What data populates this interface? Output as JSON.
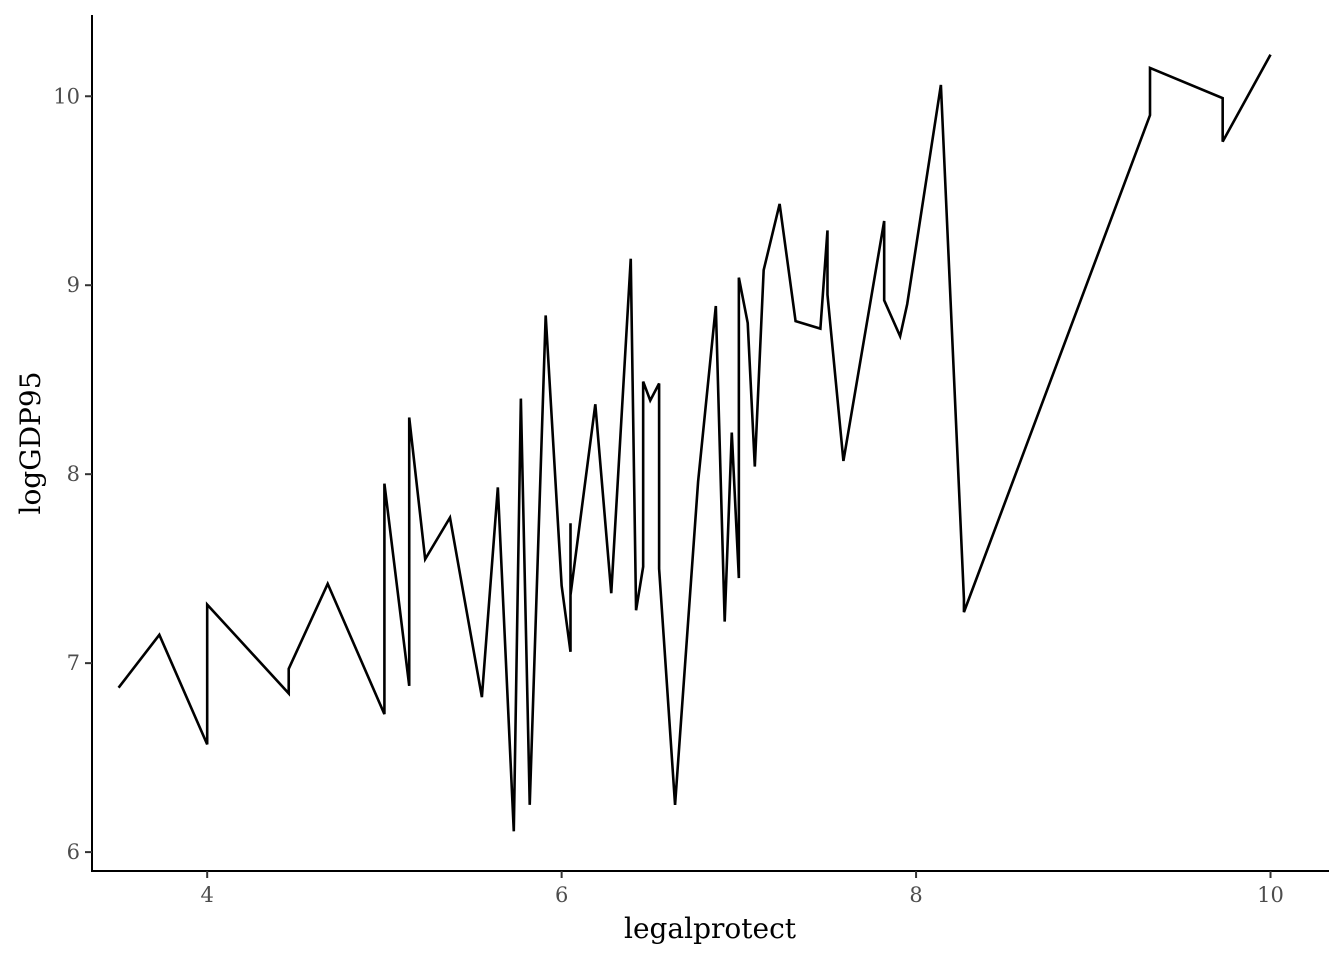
{
  "chart_data": {
    "type": "line",
    "title": "",
    "xlabel": "legalprotect",
    "ylabel": "logGDP95",
    "xlim": [
      3.35,
      10.33
    ],
    "ylim": [
      5.9,
      10.43
    ],
    "x_ticks": [
      4,
      6,
      8,
      10
    ],
    "x_tick_labels": [
      "4",
      "6",
      "8",
      "10"
    ],
    "y_ticks": [
      6,
      7,
      8,
      9,
      10
    ],
    "y_tick_labels": [
      "6",
      "7",
      "8",
      "9",
      "10"
    ],
    "grid": false,
    "line_color": "#000000",
    "series": [
      {
        "x": [
          3.5,
          3.73,
          4.0,
          4.0,
          4.46,
          4.46,
          4.68,
          5.0,
          5.0,
          5.14,
          5.14,
          5.23,
          5.37,
          5.55,
          5.64,
          5.73,
          5.77,
          5.82,
          5.91,
          6.0,
          6.05,
          6.05,
          6.05,
          6.19,
          6.28,
          6.39,
          6.42,
          6.46,
          6.46,
          6.5,
          6.55,
          6.55,
          6.64,
          6.77,
          6.87,
          6.92,
          6.96,
          7.0,
          7.0,
          7.05,
          7.09,
          7.14,
          7.23,
          7.32,
          7.46,
          7.5,
          7.5,
          7.59,
          7.82,
          7.82,
          7.91,
          7.95,
          8.14,
          8.27,
          8.27,
          9.32,
          9.32,
          9.73,
          9.73,
          10.0
        ],
        "y": [
          6.87,
          7.15,
          6.57,
          7.31,
          6.84,
          6.97,
          7.42,
          6.73,
          7.95,
          6.88,
          8.3,
          7.55,
          7.77,
          6.82,
          7.93,
          6.11,
          8.4,
          6.25,
          8.84,
          7.41,
          7.06,
          7.74,
          7.36,
          8.37,
          7.37,
          9.14,
          7.28,
          7.51,
          8.49,
          8.39,
          8.48,
          7.5,
          6.25,
          7.96,
          8.89,
          7.22,
          8.22,
          7.45,
          9.04,
          8.8,
          8.04,
          9.08,
          9.43,
          8.81,
          8.77,
          9.29,
          8.95,
          8.07,
          9.34,
          8.92,
          8.73,
          8.9,
          10.06,
          7.34,
          7.27,
          9.9,
          10.15,
          9.99,
          9.76,
          10.22
        ]
      }
    ]
  }
}
